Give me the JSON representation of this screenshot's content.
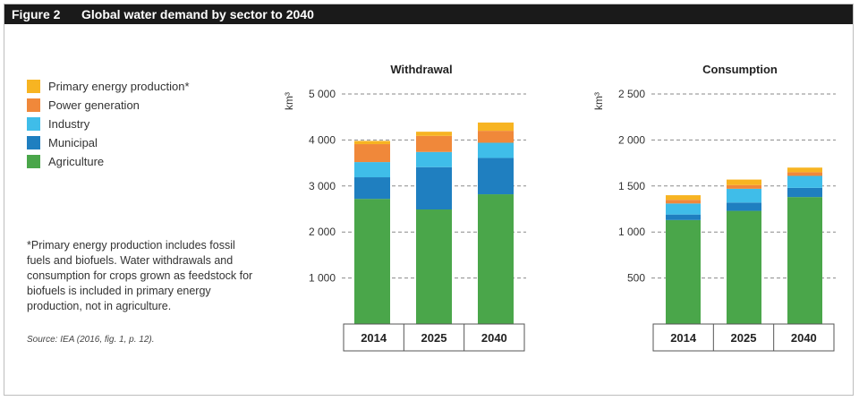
{
  "figure": {
    "number": "Figure 2",
    "title": "Global water demand by sector to 2040"
  },
  "legend": {
    "items": [
      {
        "label": "Primary energy production*",
        "color": "#f7b422"
      },
      {
        "label": "Power generation",
        "color": "#f0883a"
      },
      {
        "label": "Industry",
        "color": "#3fbde9"
      },
      {
        "label": "Municipal",
        "color": "#1f7fc0"
      },
      {
        "label": "Agriculture",
        "color": "#4aa64a"
      }
    ]
  },
  "footnote": "*Primary energy production includes fossil fuels and biofuels. Water withdrawals and consumption for crops grown as feedstock for biofuels is included in primary energy production, not in agriculture.",
  "source": "Source: IEA (2016, fig. 1, p. 12).",
  "chart_data": [
    {
      "type": "bar",
      "stacked": true,
      "title": "Withdrawal",
      "ylabel": "km³",
      "ylim": [
        0,
        5000
      ],
      "yticks": [
        1000,
        2000,
        3000,
        4000,
        5000
      ],
      "ytick_labels": [
        "1 000",
        "2 000",
        "3 000",
        "4 000",
        "5 000"
      ],
      "grid": "dashed",
      "categories": [
        "2014",
        "2025",
        "2040"
      ],
      "series": [
        {
          "name": "Agriculture",
          "color": "#4aa64a",
          "values": [
            2720,
            2490,
            2820
          ]
        },
        {
          "name": "Municipal",
          "color": "#1f7fc0",
          "values": [
            470,
            920,
            790
          ]
        },
        {
          "name": "Industry",
          "color": "#3fbde9",
          "values": [
            330,
            330,
            330
          ]
        },
        {
          "name": "Power generation",
          "color": "#f0883a",
          "values": [
            390,
            350,
            260
          ]
        },
        {
          "name": "Primary energy production*",
          "color": "#f7b422",
          "values": [
            70,
            90,
            180
          ]
        }
      ]
    },
    {
      "type": "bar",
      "stacked": true,
      "title": "Consumption",
      "ylabel": "km³",
      "ylim": [
        0,
        2500
      ],
      "yticks": [
        500,
        1000,
        1500,
        2000,
        2500
      ],
      "ytick_labels": [
        "500",
        "1 000",
        "1 500",
        "2 000",
        "2 500"
      ],
      "grid": "dashed",
      "categories": [
        "2014",
        "2025",
        "2040"
      ],
      "series": [
        {
          "name": "Agriculture",
          "color": "#4aa64a",
          "values": [
            1130,
            1230,
            1380
          ]
        },
        {
          "name": "Municipal",
          "color": "#1f7fc0",
          "values": [
            60,
            90,
            100
          ]
        },
        {
          "name": "Industry",
          "color": "#3fbde9",
          "values": [
            120,
            150,
            130
          ]
        },
        {
          "name": "Power generation",
          "color": "#f0883a",
          "values": [
            40,
            40,
            40
          ]
        },
        {
          "name": "Primary energy production*",
          "color": "#f7b422",
          "values": [
            50,
            60,
            50
          ]
        }
      ]
    }
  ]
}
